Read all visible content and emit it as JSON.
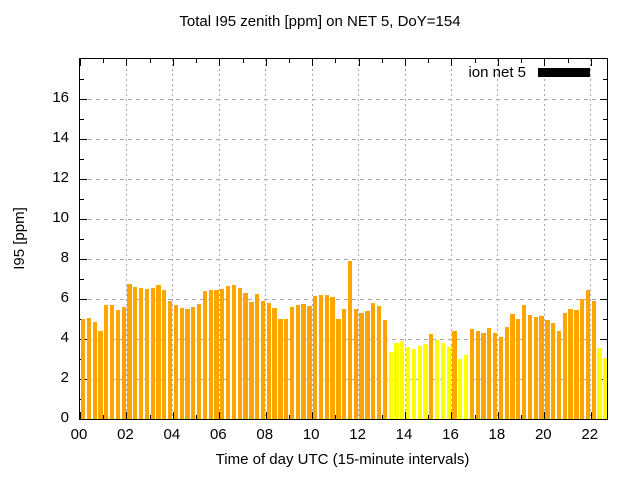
{
  "chart_data": {
    "type": "bar",
    "title": "Total I95 zenith [ppm] on NET 5, DoY=154",
    "xlabel": "Time of day UTC (15-minute intervals)",
    "ylabel": "I95 [ppm]",
    "legend": {
      "label": "ion net 5",
      "swatch_color": "#000000",
      "position": "top-right-inside"
    },
    "xlim": [
      0,
      22.7
    ],
    "ylim": [
      0,
      18
    ],
    "x_tick_labels": [
      "00",
      "02",
      "04",
      "06",
      "08",
      "10",
      "12",
      "14",
      "16",
      "18",
      "20",
      "22"
    ],
    "x_major_hours": [
      0,
      2,
      4,
      6,
      8,
      10,
      12,
      14,
      16,
      18,
      20,
      22
    ],
    "x_minor_hours": [
      1,
      3,
      5,
      7,
      9,
      11,
      13,
      15,
      17,
      19,
      21
    ],
    "y_ticks": [
      0,
      2,
      4,
      6,
      8,
      10,
      12,
      14,
      16
    ],
    "y_minor_ticks": [
      1,
      3,
      5,
      7,
      9,
      11,
      13,
      15,
      17
    ],
    "grid": true,
    "grid_color": "#a8a8a8",
    "palette": {
      "orange": "#ffa500",
      "yellow": "#ffff00"
    },
    "interval_minutes": 15,
    "bars": {
      "times": [
        "00:00",
        "00:15",
        "00:30",
        "00:45",
        "01:00",
        "01:15",
        "01:30",
        "01:45",
        "02:00",
        "02:15",
        "02:30",
        "02:45",
        "03:00",
        "03:15",
        "03:30",
        "03:45",
        "04:00",
        "04:15",
        "04:30",
        "04:45",
        "05:00",
        "05:15",
        "05:30",
        "05:45",
        "06:00",
        "06:15",
        "06:30",
        "06:45",
        "07:00",
        "07:15",
        "07:30",
        "07:45",
        "08:00",
        "08:15",
        "08:30",
        "08:45",
        "09:00",
        "09:15",
        "09:30",
        "09:45",
        "10:00",
        "10:15",
        "10:30",
        "10:45",
        "11:00",
        "11:15",
        "11:30",
        "11:45",
        "12:00",
        "12:15",
        "12:30",
        "12:45",
        "13:00",
        "13:15",
        "13:30",
        "13:45",
        "14:00",
        "14:15",
        "14:30",
        "14:45",
        "15:00",
        "15:15",
        "15:30",
        "15:45",
        "16:00",
        "16:15",
        "16:30",
        "16:45",
        "17:00",
        "17:15",
        "17:30",
        "17:45",
        "18:00",
        "18:15",
        "18:30",
        "18:45",
        "19:00",
        "19:15",
        "19:30",
        "19:45",
        "20:00",
        "20:15",
        "20:30",
        "20:45",
        "21:00",
        "21:15",
        "21:30",
        "21:45",
        "22:00",
        "22:15",
        "22:30"
      ],
      "values": [
        5.0,
        5.05,
        4.85,
        4.4,
        5.7,
        5.7,
        5.45,
        5.6,
        6.75,
        6.6,
        6.55,
        6.5,
        6.55,
        6.7,
        6.45,
        5.9,
        5.7,
        5.55,
        5.5,
        5.6,
        5.75,
        6.4,
        6.45,
        6.45,
        6.5,
        6.65,
        6.7,
        6.55,
        6.3,
        5.85,
        6.25,
        5.9,
        5.8,
        5.55,
        5.0,
        5.0,
        5.6,
        5.7,
        5.75,
        5.65,
        6.15,
        6.2,
        6.2,
        6.1,
        5.0,
        5.5,
        7.9,
        5.5,
        5.3,
        5.4,
        5.8,
        5.65,
        4.95,
        3.35,
        3.8,
        3.9,
        3.6,
        3.5,
        3.65,
        3.75,
        4.25,
        3.95,
        3.8,
        3.6,
        4.4,
        3.0,
        3.2,
        4.5,
        4.4,
        4.3,
        4.55,
        4.3,
        4.1,
        4.6,
        5.25,
        5.0,
        5.7,
        5.2,
        5.1,
        5.15,
        4.95,
        4.8,
        4.4,
        5.3,
        5.5,
        5.45,
        6.0,
        6.45,
        5.9,
        3.55,
        3.05
      ],
      "colors": [
        "orange",
        "orange",
        "orange",
        "orange",
        "orange",
        "orange",
        "orange",
        "orange",
        "orange",
        "orange",
        "orange",
        "orange",
        "orange",
        "orange",
        "orange",
        "orange",
        "orange",
        "orange",
        "orange",
        "orange",
        "orange",
        "orange",
        "orange",
        "orange",
        "orange",
        "orange",
        "orange",
        "orange",
        "orange",
        "orange",
        "orange",
        "orange",
        "orange",
        "orange",
        "orange",
        "orange",
        "orange",
        "orange",
        "orange",
        "orange",
        "orange",
        "orange",
        "orange",
        "orange",
        "orange",
        "orange",
        "orange",
        "orange",
        "orange",
        "orange",
        "orange",
        "orange",
        "orange",
        "yellow",
        "yellow",
        "yellow",
        "yellow",
        "yellow",
        "yellow",
        "yellow",
        "orange",
        "yellow",
        "yellow",
        "yellow",
        "orange",
        "yellow",
        "yellow",
        "orange",
        "orange",
        "orange",
        "orange",
        "orange",
        "orange",
        "orange",
        "orange",
        "orange",
        "orange",
        "orange",
        "orange",
        "orange",
        "orange",
        "orange",
        "orange",
        "orange",
        "orange",
        "orange",
        "orange",
        "orange",
        "orange",
        "yellow",
        "yellow"
      ]
    }
  }
}
